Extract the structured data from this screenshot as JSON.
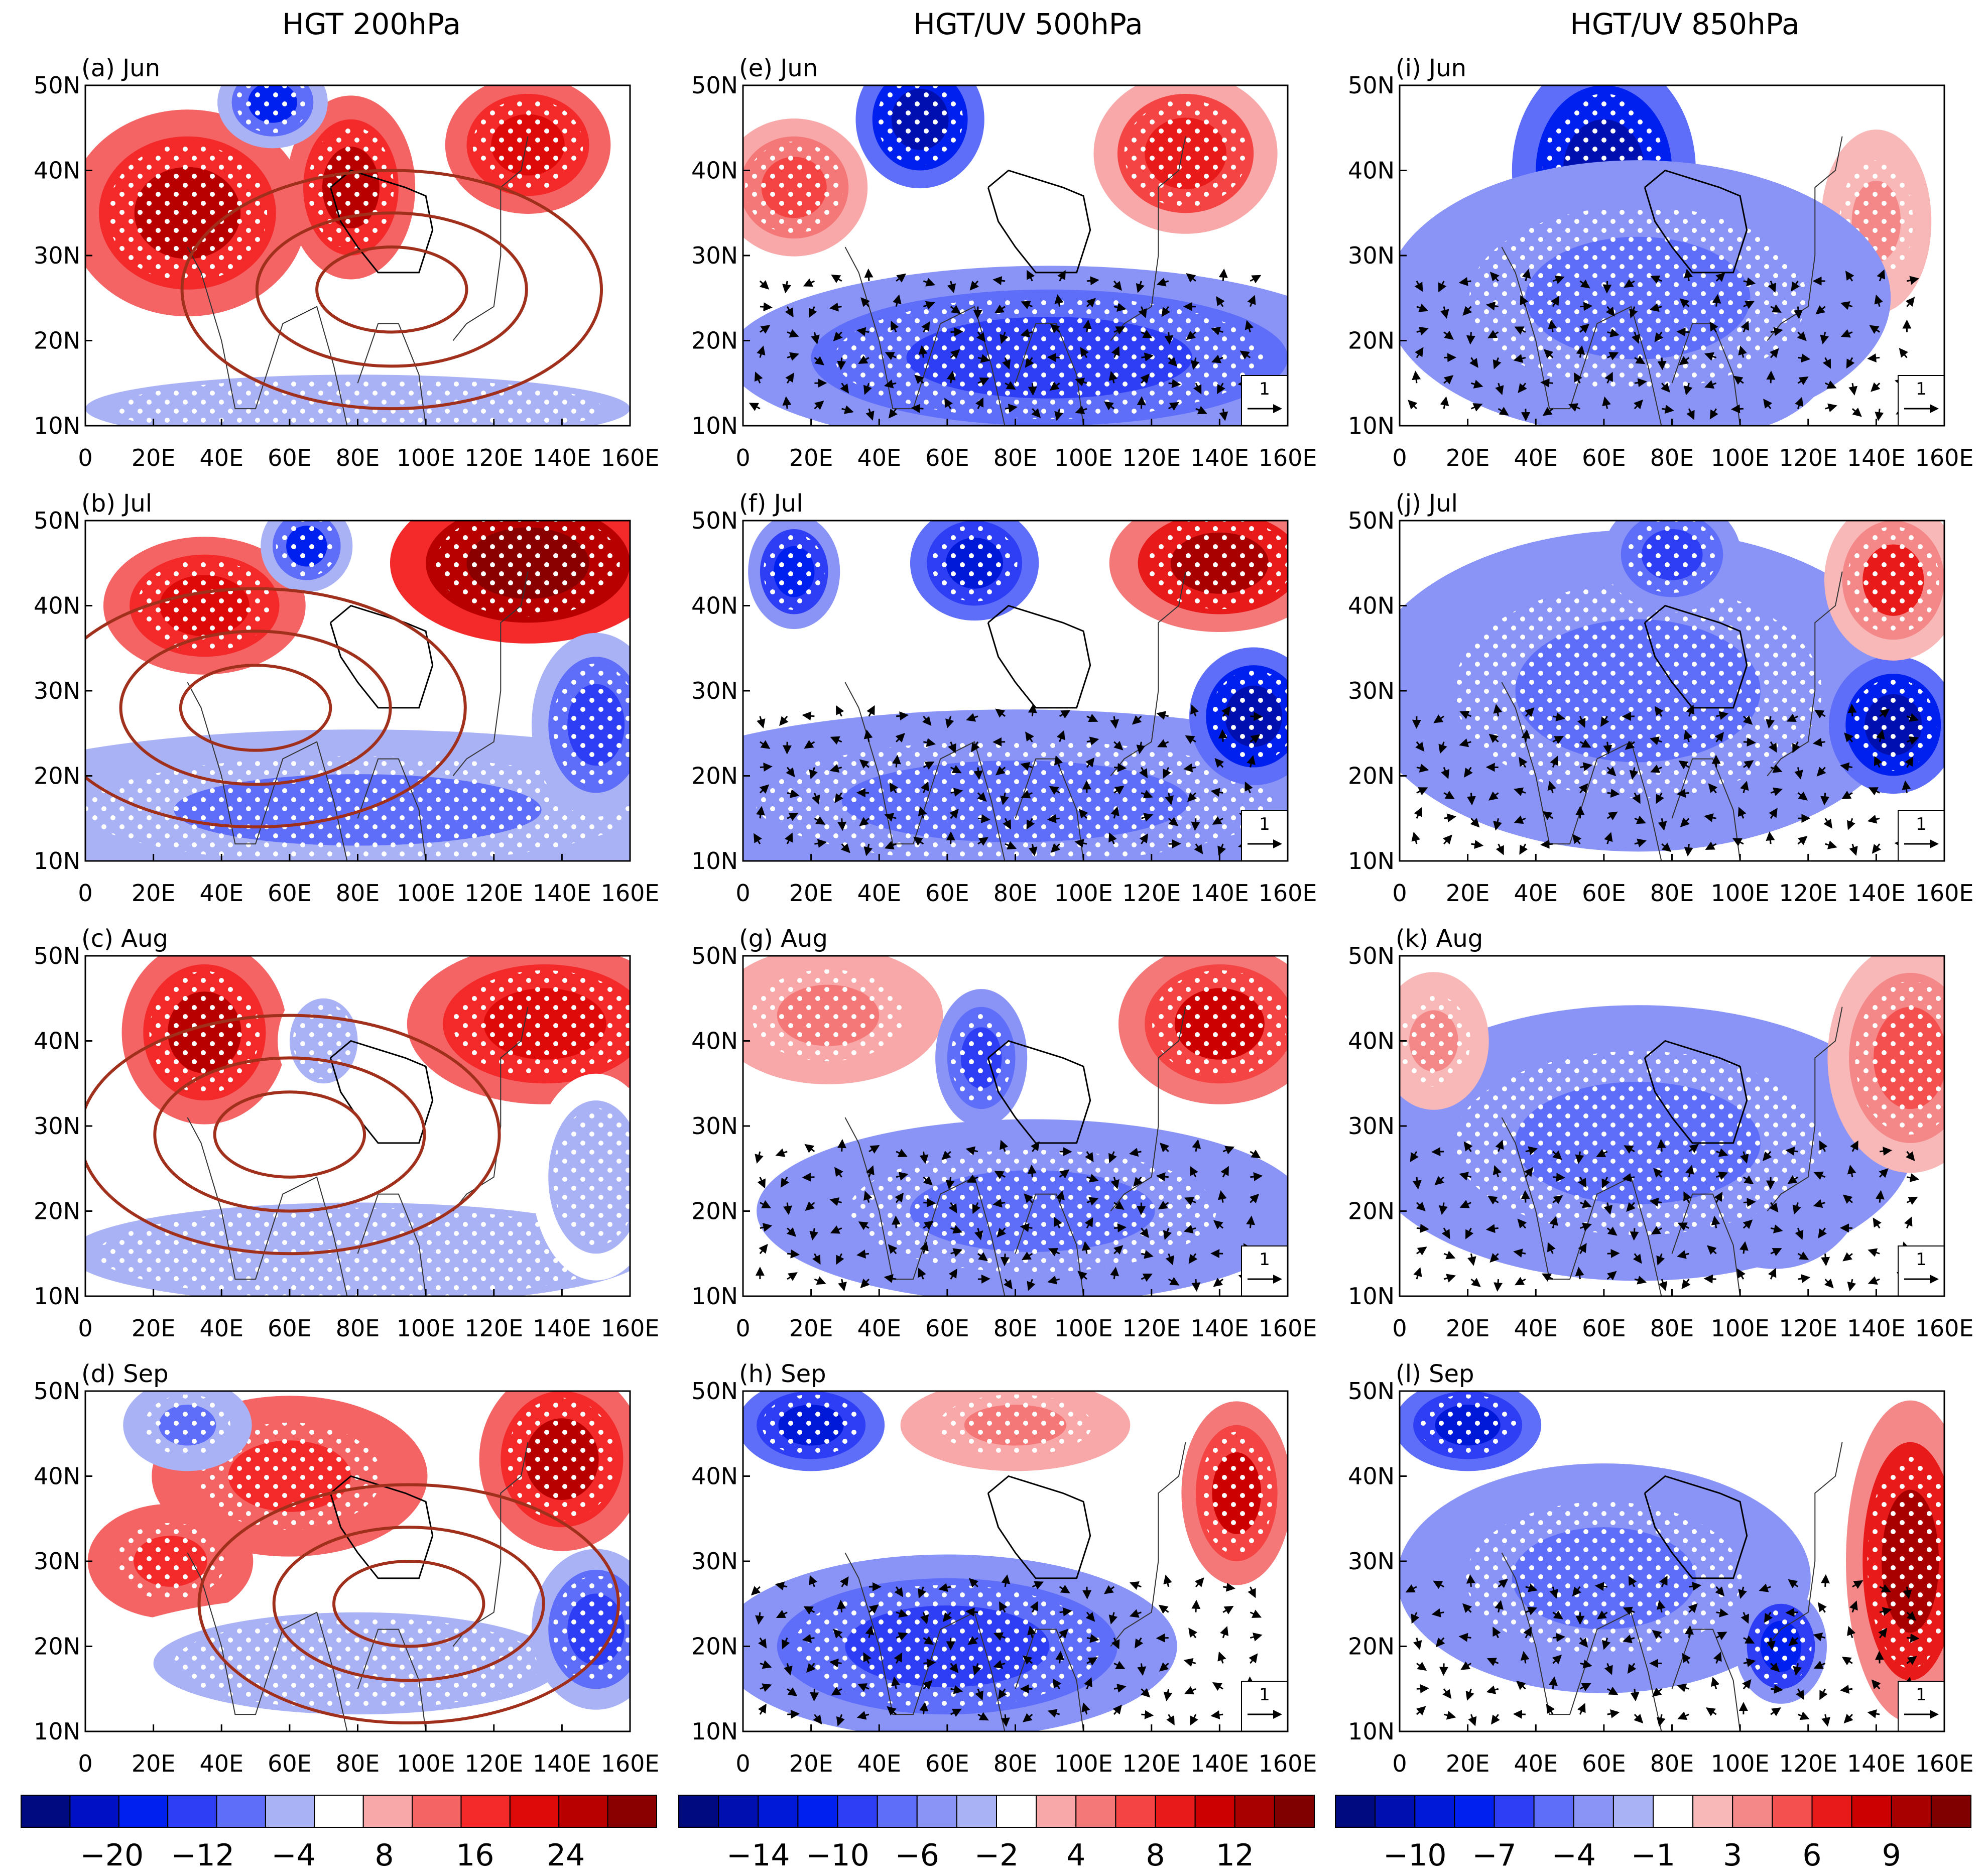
{
  "chart_data": {
    "type": "heatmap",
    "x_ticks": [
      "0",
      "20E",
      "40E",
      "60E",
      "80E",
      "100E",
      "120E",
      "140E",
      "160E"
    ],
    "y_ticks": [
      "10N",
      "20N",
      "30N",
      "40N",
      "50N"
    ],
    "xlim": [
      0,
      160
    ],
    "ylim": [
      10,
      50
    ],
    "vector_reference": "1",
    "columns": [
      {
        "title": "HGT 200hPa",
        "variable": "HGT",
        "level": "200hPa",
        "vectors": false,
        "colorbar": {
          "tick_labels": [
            "−20",
            "−12",
            "−4",
            "8",
            "16",
            "24"
          ],
          "colors": [
            "#000a80",
            "#0010c4",
            "#0020f0",
            "#2e3ef4",
            "#5e6ef8",
            "#aab2f6",
            "#ffffff",
            "#f8a8a8",
            "#f46464",
            "#f42a2a",
            "#de0a0a",
            "#b80000",
            "#8a0000"
          ]
        },
        "panels": [
          {
            "label": "(a) Jun",
            "anomalies": [
              {
                "lon": 30,
                "lat": 35,
                "value": 16,
                "rx": 26,
                "ry": 9
              },
              {
                "lon": 78,
                "lat": 38,
                "value": 16,
                "rx": 14,
                "ry": 8
              },
              {
                "lon": 130,
                "lat": 43,
                "value": 12,
                "rx": 18,
                "ry": 6
              },
              {
                "lon": 55,
                "lat": 48,
                "value": -16,
                "rx": 12,
                "ry": 4
              },
              {
                "lon": 80,
                "lat": 12,
                "value": -4,
                "rx": 80,
                "ry": 4
              }
            ]
          },
          {
            "label": "(b) Jul",
            "anomalies": [
              {
                "lon": 130,
                "lat": 45,
                "value": 24,
                "rx": 30,
                "ry": 7
              },
              {
                "lon": 35,
                "lat": 40,
                "value": 12,
                "rx": 22,
                "ry": 6
              },
              {
                "lon": 65,
                "lat": 47,
                "value": -16,
                "rx": 10,
                "ry": 4
              },
              {
                "lon": 80,
                "lat": 16,
                "value": -8,
                "rx": 90,
                "ry": 7
              },
              {
                "lon": 150,
                "lat": 26,
                "value": -12,
                "rx": 14,
                "ry": 8
              }
            ]
          },
          {
            "label": "(c) Aug",
            "anomalies": [
              {
                "lon": 35,
                "lat": 41,
                "value": 16,
                "rx": 18,
                "ry": 8
              },
              {
                "lon": 135,
                "lat": 42,
                "value": 12,
                "rx": 30,
                "ry": 7
              },
              {
                "lon": 70,
                "lat": 40,
                "value": -4,
                "rx": 10,
                "ry": 5
              },
              {
                "lon": 80,
                "lat": 15,
                "value": -4,
                "rx": 85,
                "ry": 6
              },
              {
                "lon": 150,
                "lat": 24,
                "value": -4,
                "rx": 14,
                "ry": 9
              }
            ]
          },
          {
            "label": "(d) Sep",
            "anomalies": [
              {
                "lon": 140,
                "lat": 42,
                "value": 16,
                "rx": 18,
                "ry": 8
              },
              {
                "lon": 60,
                "lat": 40,
                "value": 8,
                "rx": 30,
                "ry": 7
              },
              {
                "lon": 25,
                "lat": 30,
                "value": 8,
                "rx": 18,
                "ry": 5
              },
              {
                "lon": 30,
                "lat": 46,
                "value": -8,
                "rx": 14,
                "ry": 4
              },
              {
                "lon": 80,
                "lat": 18,
                "value": -4,
                "rx": 60,
                "ry": 6
              },
              {
                "lon": 150,
                "lat": 22,
                "value": -12,
                "rx": 14,
                "ry": 7
              }
            ]
          }
        ]
      },
      {
        "title": "HGT/UV 500hPa",
        "variable": "HGT/UV",
        "level": "500hPa",
        "vectors": true,
        "colorbar": {
          "tick_labels": [
            "−14",
            "−10",
            "−6",
            "−2",
            "4",
            "8",
            "12"
          ],
          "colors": [
            "#000a80",
            "#0010b0",
            "#0018d8",
            "#0020f0",
            "#2e3ef4",
            "#5e6ef8",
            "#8a94f6",
            "#aab2f6",
            "#ffffff",
            "#f8a8a8",
            "#f47878",
            "#f44444",
            "#e81a1a",
            "#cc0000",
            "#a80000",
            "#800000"
          ]
        },
        "panels": [
          {
            "label": "(e) Jun",
            "anomalies": [
              {
                "lon": 52,
                "lat": 46,
                "value": -12,
                "rx": 14,
                "ry": 6
              },
              {
                "lon": 90,
                "lat": 18,
                "value": -6,
                "rx": 70,
                "ry": 8
              },
              {
                "lon": 130,
                "lat": 42,
                "value": 8,
                "rx": 20,
                "ry": 7
              },
              {
                "lon": 15,
                "lat": 38,
                "value": 6,
                "rx": 16,
                "ry": 6
              }
            ]
          },
          {
            "label": "(f) Jul",
            "anomalies": [
              {
                "lon": 68,
                "lat": 45,
                "value": -10,
                "rx": 14,
                "ry": 5
              },
              {
                "lon": 15,
                "lat": 44,
                "value": -8,
                "rx": 10,
                "ry": 5
              },
              {
                "lon": 140,
                "lat": 45,
                "value": 12,
                "rx": 24,
                "ry": 6
              },
              {
                "lon": 80,
                "lat": 17,
                "value": -4,
                "rx": 85,
                "ry": 8
              },
              {
                "lon": 150,
                "lat": 27,
                "value": -12,
                "rx": 14,
                "ry": 6
              }
            ]
          },
          {
            "label": "(g) Aug",
            "anomalies": [
              {
                "lon": 140,
                "lat": 42,
                "value": 10,
                "rx": 22,
                "ry": 7
              },
              {
                "lon": 25,
                "lat": 43,
                "value": 4,
                "rx": 25,
                "ry": 6
              },
              {
                "lon": 85,
                "lat": 20,
                "value": -4,
                "rx": 60,
                "ry": 8
              },
              {
                "lon": 70,
                "lat": 38,
                "value": -6,
                "rx": 10,
                "ry": 6
              }
            ]
          },
          {
            "label": "(h) Sep",
            "anomalies": [
              {
                "lon": 20,
                "lat": 46,
                "value": -10,
                "rx": 16,
                "ry": 4
              },
              {
                "lon": 145,
                "lat": 38,
                "value": 10,
                "rx": 12,
                "ry": 8
              },
              {
                "lon": 60,
                "lat": 20,
                "value": -6,
                "rx": 50,
                "ry": 8
              },
              {
                "lon": 80,
                "lat": 46,
                "value": 4,
                "rx": 25,
                "ry": 4
              }
            ]
          }
        ]
      },
      {
        "title": "HGT/UV 850hPa",
        "variable": "HGT/UV",
        "level": "850hPa",
        "vectors": true,
        "colorbar": {
          "tick_labels": [
            "−10",
            "−7",
            "−4",
            "−1",
            "3",
            "6",
            "9"
          ],
          "colors": [
            "#000a80",
            "#0010b0",
            "#0018d8",
            "#0020f0",
            "#2e3ef4",
            "#5e6ef8",
            "#8a94f6",
            "#aab2f6",
            "#ffffff",
            "#f8b8b8",
            "#f48888",
            "#f45050",
            "#e81a1a",
            "#cc0000",
            "#a80000",
            "#800000"
          ]
        },
        "panels": [
          {
            "label": "(i) Jun",
            "anomalies": [
              {
                "lon": 60,
                "lat": 40,
                "value": -9,
                "rx": 20,
                "ry": 10
              },
              {
                "lon": 95,
                "lat": 20,
                "value": -6,
                "rx": 25,
                "ry": 8
              },
              {
                "lon": 140,
                "lat": 34,
                "value": 3,
                "rx": 12,
                "ry": 8
              },
              {
                "lon": 70,
                "lat": 25,
                "value": -3,
                "rx": 55,
                "ry": 12
              }
            ]
          },
          {
            "label": "(j) Jul",
            "anomalies": [
              {
                "lon": 70,
                "lat": 30,
                "value": -3,
                "rx": 60,
                "ry": 14
              },
              {
                "lon": 145,
                "lat": 26,
                "value": -9,
                "rx": 14,
                "ry": 6
              },
              {
                "lon": 145,
                "lat": 43,
                "value": 5,
                "rx": 15,
                "ry": 7
              },
              {
                "lon": 80,
                "lat": 46,
                "value": -4,
                "rx": 15,
                "ry": 5
              }
            ]
          },
          {
            "label": "(k) Aug",
            "anomalies": [
              {
                "lon": 110,
                "lat": 24,
                "value": -6,
                "rx": 20,
                "ry": 8
              },
              {
                "lon": 70,
                "lat": 28,
                "value": -3,
                "rx": 60,
                "ry": 12
              },
              {
                "lon": 150,
                "lat": 38,
                "value": 4,
                "rx": 18,
                "ry": 10
              },
              {
                "lon": 10,
                "lat": 40,
                "value": 3,
                "rx": 12,
                "ry": 6
              }
            ]
          },
          {
            "label": "(l) Sep",
            "anomalies": [
              {
                "lon": 20,
                "lat": 46,
                "value": -7,
                "rx": 16,
                "ry": 4
              },
              {
                "lon": 150,
                "lat": 30,
                "value": 8,
                "rx": 14,
                "ry": 14
              },
              {
                "lon": 60,
                "lat": 28,
                "value": -3,
                "rx": 45,
                "ry": 10
              },
              {
                "lon": 112,
                "lat": 20,
                "value": -6,
                "rx": 10,
                "ry": 5
              }
            ]
          }
        ]
      }
    ]
  }
}
